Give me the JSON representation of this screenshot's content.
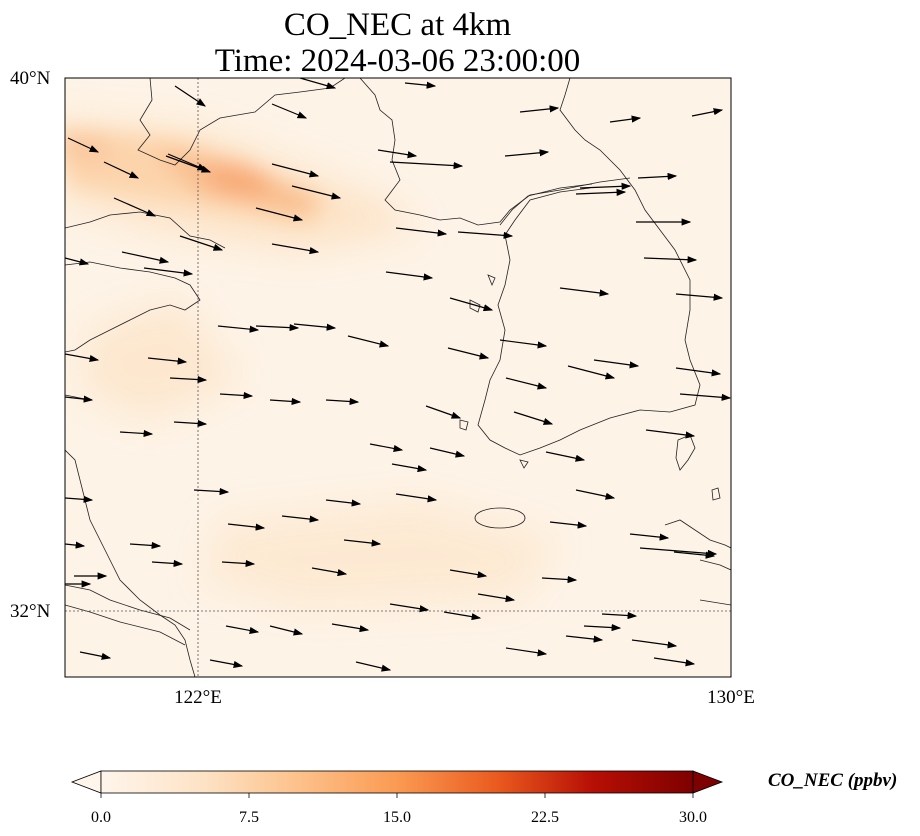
{
  "title": {
    "line1": "CO_NEC at 4km",
    "line2": "Time: 2024-03-06 23:00:00"
  },
  "map": {
    "lon_range": [
      120,
      130
    ],
    "lat_range": [
      31,
      40
    ],
    "gridlines": {
      "lon": [
        122
      ],
      "lat": [
        32
      ]
    },
    "tick_labels": {
      "lat_top": "40°N",
      "lat_grid": "32°N",
      "lon_grid": "122°E",
      "lon_right": "130°E"
    },
    "field_colors": {
      "background": "#fdf3e6",
      "low": "#fde9d2",
      "medium": "#fcd4ac",
      "high": "#f8a774"
    },
    "coastline_color": "#222222",
    "arrow_color": "#000000"
  },
  "colorbar": {
    "label": "CO_NEC (ppbv)",
    "range": [
      0,
      30
    ],
    "ticks": [
      "0.0",
      "7.5",
      "15.0",
      "22.5",
      "30.0"
    ],
    "extend": "both",
    "colors": [
      "#fff5eb",
      "#fdd9b4",
      "#fdab67",
      "#f4702a",
      "#cf3b08",
      "#a00000",
      "#7f0000"
    ]
  }
}
